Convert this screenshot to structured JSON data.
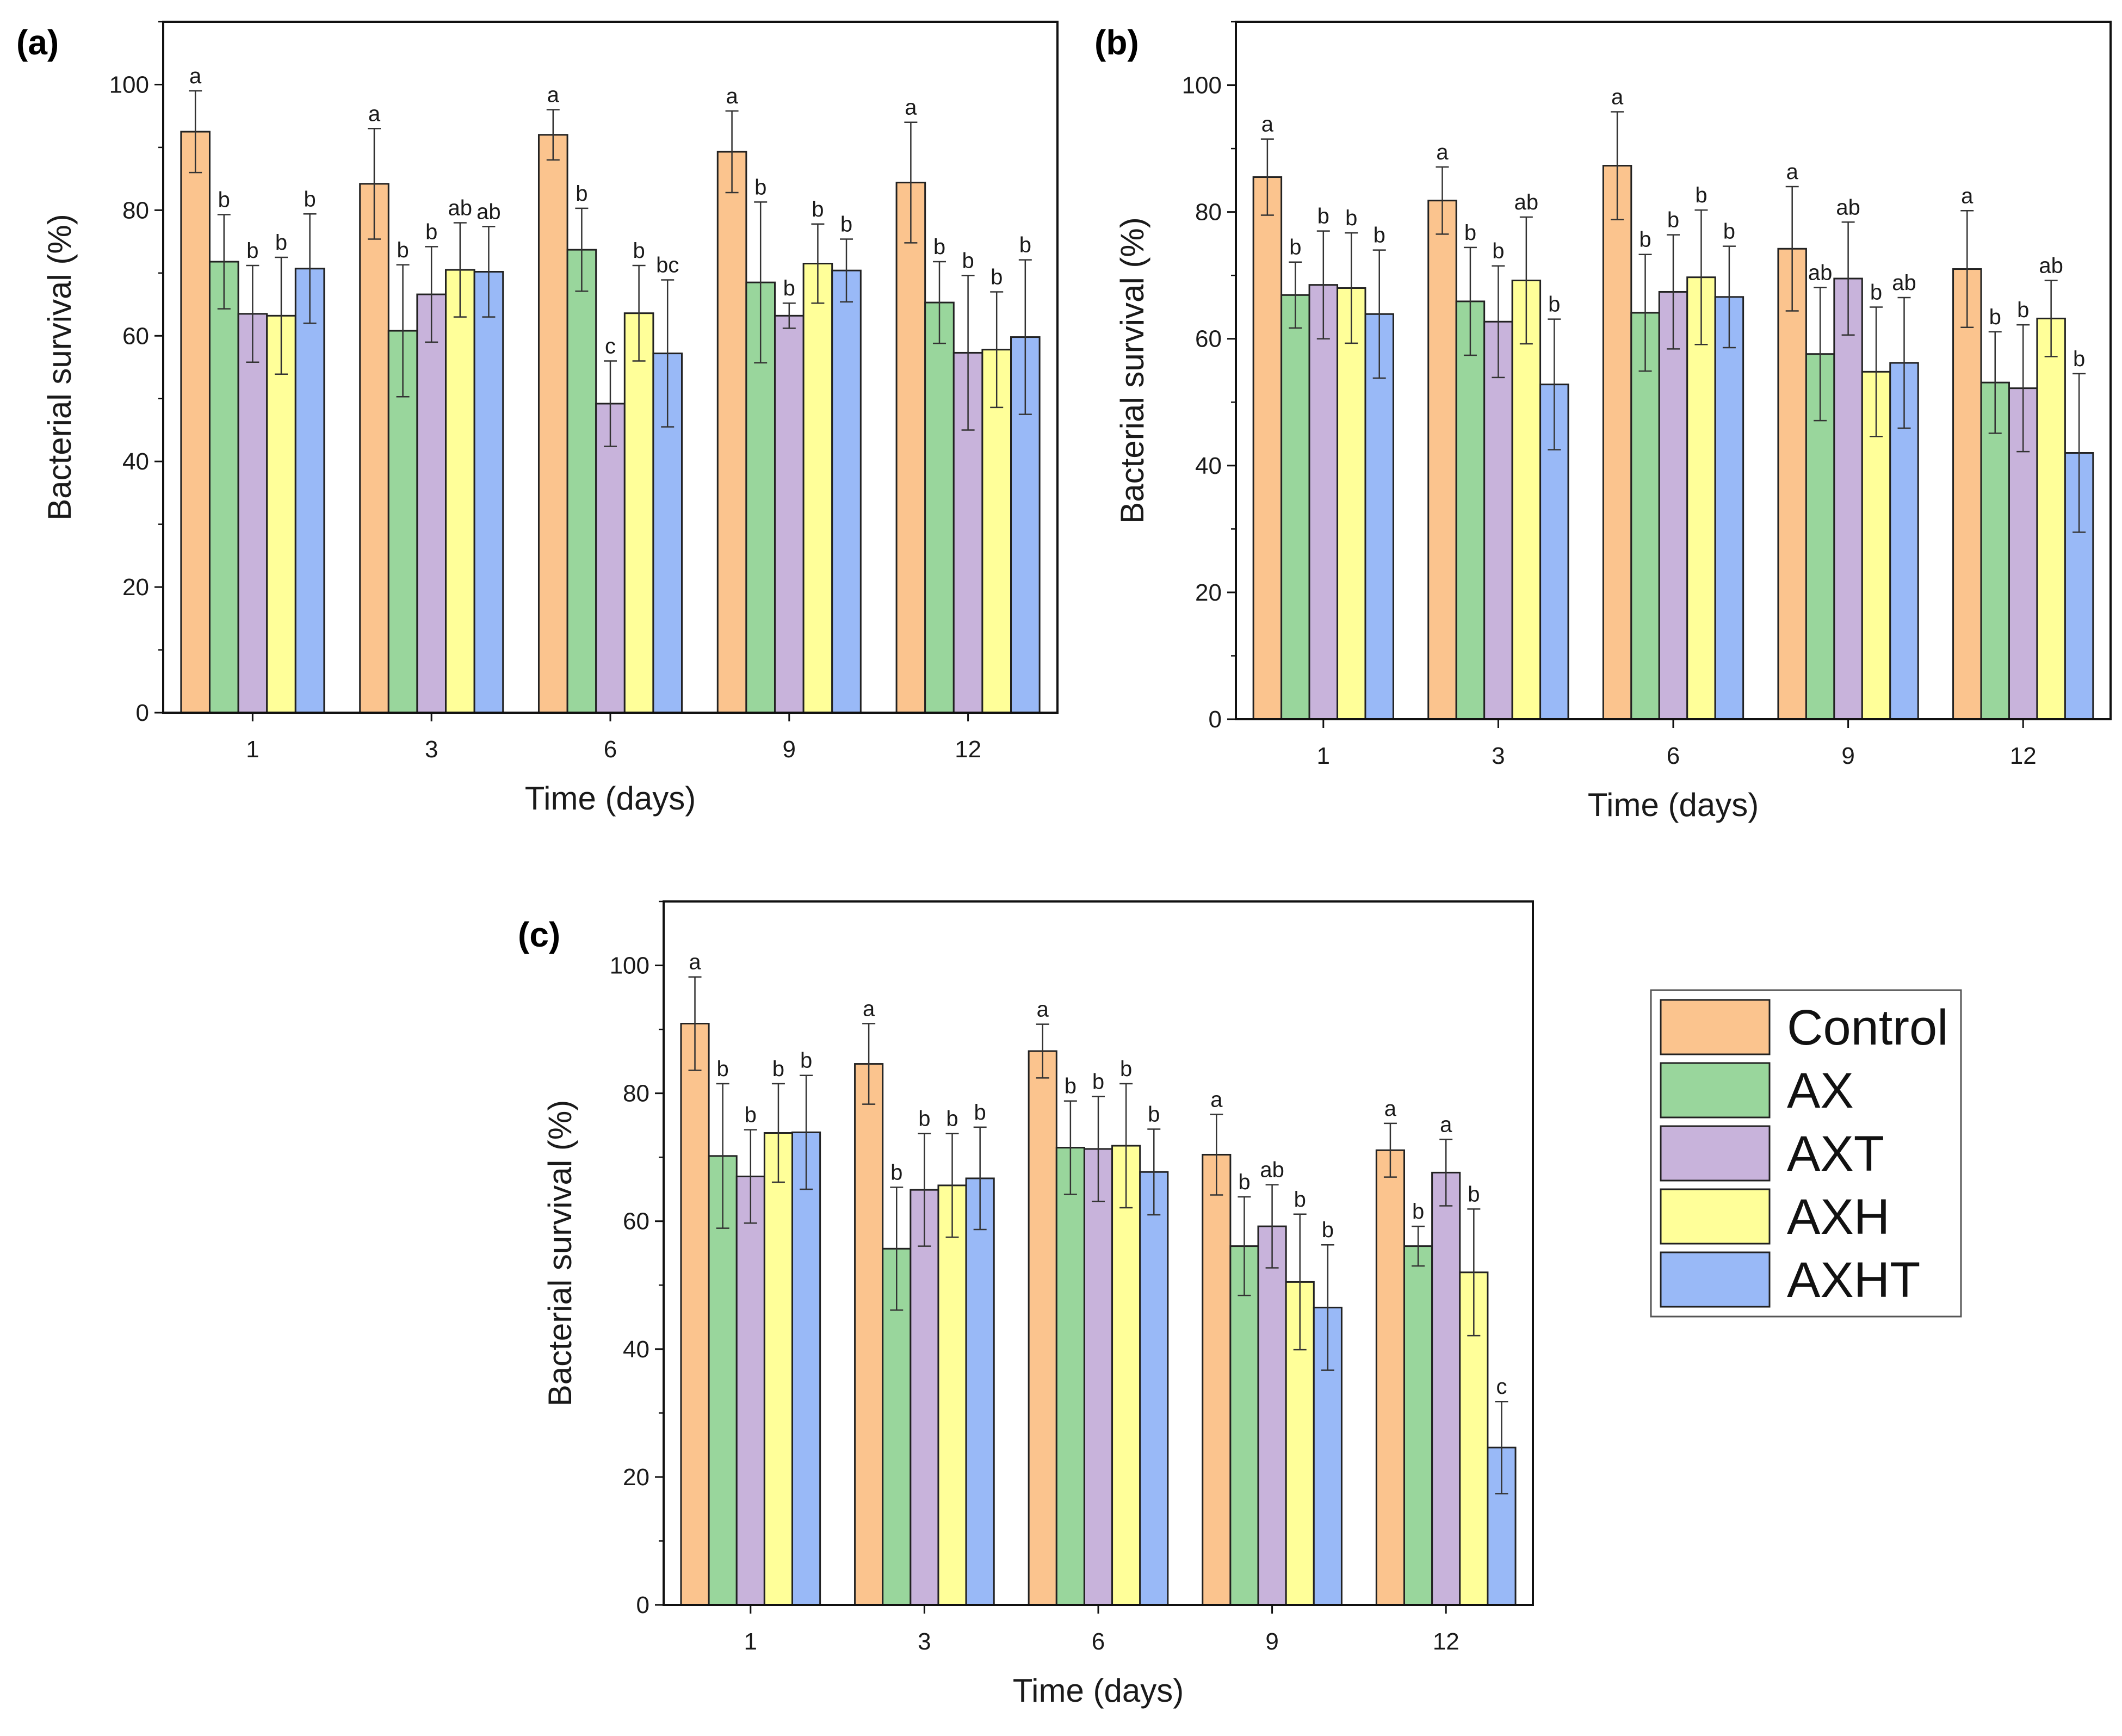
{
  "legend": {
    "series": [
      "Control",
      "AX",
      "AXT",
      "AXH",
      "AXHT"
    ],
    "colors": [
      "#fbc48e",
      "#99d69c",
      "#c8b3db",
      "#ffff99",
      "#99b9f7"
    ]
  },
  "chart_data": [
    {
      "type": "bar",
      "panel": "(a)",
      "title": "",
      "xlabel": "Time (days)",
      "ylabel": "Bacterial survival (%)",
      "ylim": [
        0,
        110
      ],
      "yticks": [
        0,
        20,
        40,
        60,
        80,
        100
      ],
      "categories": [
        "1",
        "3",
        "6",
        "9",
        "12"
      ],
      "series": [
        {
          "name": "Control",
          "values": [
            92.5,
            84.2,
            92.0,
            89.3,
            84.4
          ],
          "errors": [
            6.5,
            8.8,
            4.0,
            6.5,
            9.6
          ],
          "labels": [
            "a",
            "a",
            "a",
            "a",
            "a"
          ]
        },
        {
          "name": "AX",
          "values": [
            71.8,
            60.8,
            73.7,
            68.5,
            65.3
          ],
          "errors": [
            7.5,
            10.5,
            6.6,
            12.8,
            6.5
          ],
          "labels": [
            "b",
            "b",
            "b",
            "b",
            "b"
          ]
        },
        {
          "name": "AXT",
          "values": [
            63.5,
            66.6,
            49.2,
            63.2,
            57.3
          ],
          "errors": [
            7.7,
            7.6,
            6.8,
            2.0,
            12.3
          ],
          "labels": [
            "b",
            "b",
            "c",
            "b",
            "b"
          ]
        },
        {
          "name": "AXH",
          "values": [
            63.2,
            70.5,
            63.6,
            71.5,
            57.8
          ],
          "errors": [
            9.3,
            7.5,
            7.6,
            6.3,
            9.2
          ],
          "labels": [
            "b",
            "ab",
            "b",
            "b",
            "b"
          ]
        },
        {
          "name": "AXHT",
          "values": [
            70.7,
            70.2,
            57.2,
            70.4,
            59.8
          ],
          "errors": [
            8.7,
            7.2,
            11.7,
            5.0,
            12.3
          ],
          "labels": [
            "b",
            "ab",
            "bc",
            "b",
            "b"
          ]
        }
      ]
    },
    {
      "type": "bar",
      "panel": "(b)",
      "title": "",
      "xlabel": "Time (days)",
      "ylabel": "Bacterial survival (%)",
      "ylim": [
        0,
        110
      ],
      "yticks": [
        0,
        20,
        40,
        60,
        80,
        100
      ],
      "categories": [
        "1",
        "3",
        "6",
        "9",
        "12"
      ],
      "series": [
        {
          "name": "Control",
          "values": [
            85.5,
            81.8,
            87.3,
            74.2,
            71.0
          ],
          "errors": [
            6.0,
            5.3,
            8.5,
            9.8,
            9.2
          ],
          "labels": [
            "a",
            "a",
            "a",
            "a",
            "a"
          ]
        },
        {
          "name": "AX",
          "values": [
            66.9,
            65.9,
            64.1,
            57.6,
            53.1
          ],
          "errors": [
            5.2,
            8.5,
            9.2,
            10.5,
            8.0
          ],
          "labels": [
            "b",
            "b",
            "b",
            "ab",
            "b"
          ]
        },
        {
          "name": "AXT",
          "values": [
            68.5,
            62.7,
            67.4,
            69.5,
            52.2
          ],
          "errors": [
            8.5,
            8.8,
            9.0,
            8.9,
            10.0
          ],
          "labels": [
            "b",
            "b",
            "b",
            "ab",
            "b"
          ]
        },
        {
          "name": "AXH",
          "values": [
            68.0,
            69.2,
            69.7,
            54.8,
            63.2
          ],
          "errors": [
            8.7,
            10.0,
            10.6,
            10.2,
            6.0
          ],
          "labels": [
            "b",
            "ab",
            "b",
            "b",
            "ab"
          ]
        },
        {
          "name": "AXHT",
          "values": [
            63.9,
            52.8,
            66.6,
            56.2,
            42.0
          ],
          "errors": [
            10.1,
            10.3,
            8.0,
            10.3,
            12.5
          ],
          "labels": [
            "b",
            "b",
            "b",
            "ab",
            "b"
          ]
        }
      ]
    },
    {
      "type": "bar",
      "panel": "(c)",
      "title": "",
      "xlabel": "Time (days)",
      "ylabel": "Bacterial survival (%)",
      "ylim": [
        0,
        110
      ],
      "yticks": [
        0,
        20,
        40,
        60,
        80,
        100
      ],
      "categories": [
        "1",
        "3",
        "6",
        "9",
        "12"
      ],
      "series": [
        {
          "name": "Control",
          "values": [
            90.9,
            84.6,
            86.6,
            70.4,
            71.1
          ],
          "errors": [
            7.3,
            6.3,
            4.2,
            6.3,
            4.2
          ],
          "labels": [
            "a",
            "a",
            "a",
            "a",
            "a"
          ]
        },
        {
          "name": "AX",
          "values": [
            70.2,
            55.7,
            71.5,
            56.1,
            56.1
          ],
          "errors": [
            11.3,
            9.6,
            7.3,
            7.7,
            3.1
          ],
          "labels": [
            "b",
            "b",
            "b",
            "b",
            "b"
          ]
        },
        {
          "name": "AXT",
          "values": [
            67.0,
            64.9,
            71.3,
            59.2,
            67.6
          ],
          "errors": [
            7.3,
            8.8,
            8.2,
            6.5,
            5.2
          ],
          "labels": [
            "b",
            "b",
            "b",
            "ab",
            "a"
          ]
        },
        {
          "name": "AXH",
          "values": [
            73.8,
            65.6,
            71.8,
            50.5,
            52.0
          ],
          "errors": [
            7.7,
            8.1,
            9.7,
            10.6,
            9.9
          ],
          "labels": [
            "b",
            "b",
            "b",
            "b",
            "b"
          ]
        },
        {
          "name": "AXHT",
          "values": [
            73.9,
            66.7,
            67.7,
            46.5,
            24.6
          ],
          "errors": [
            8.9,
            8.0,
            6.7,
            9.8,
            7.2
          ],
          "labels": [
            "b",
            "b",
            "b",
            "b",
            "c"
          ]
        }
      ]
    }
  ]
}
